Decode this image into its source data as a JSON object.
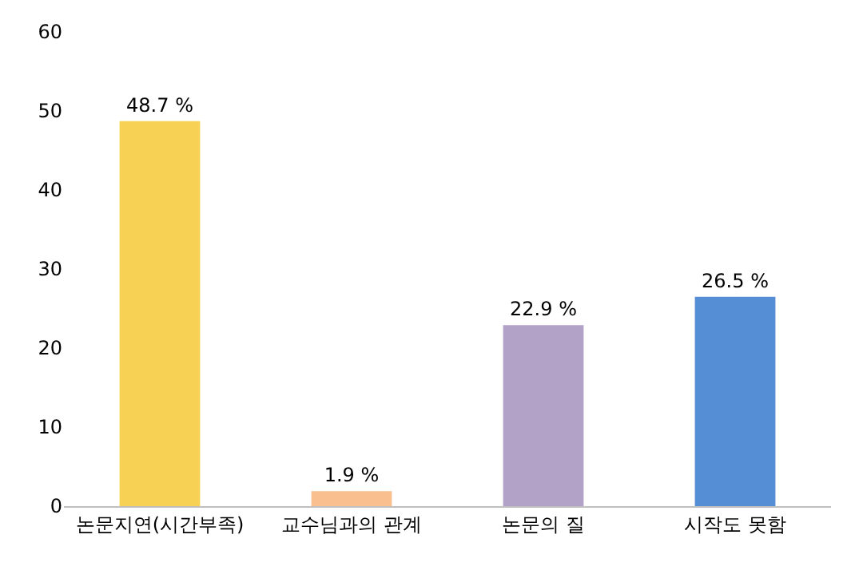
{
  "chart_data": {
    "type": "bar",
    "categories": [
      "논문지연(시간부족)",
      "교수님과의 관계",
      "논문의 질",
      "시작도 못함"
    ],
    "values": [
      48.7,
      1.9,
      22.9,
      26.5
    ],
    "colors": [
      "#f7d154",
      "#f9bf8f",
      "#b3a2c7",
      "#558ed5"
    ],
    "value_labels": [
      "48.7 %",
      "1.9 %",
      "22.9 %",
      "26.5 %"
    ],
    "ylim": [
      0,
      60
    ],
    "yticks": [
      0,
      10,
      20,
      30,
      40,
      50,
      60
    ]
  }
}
